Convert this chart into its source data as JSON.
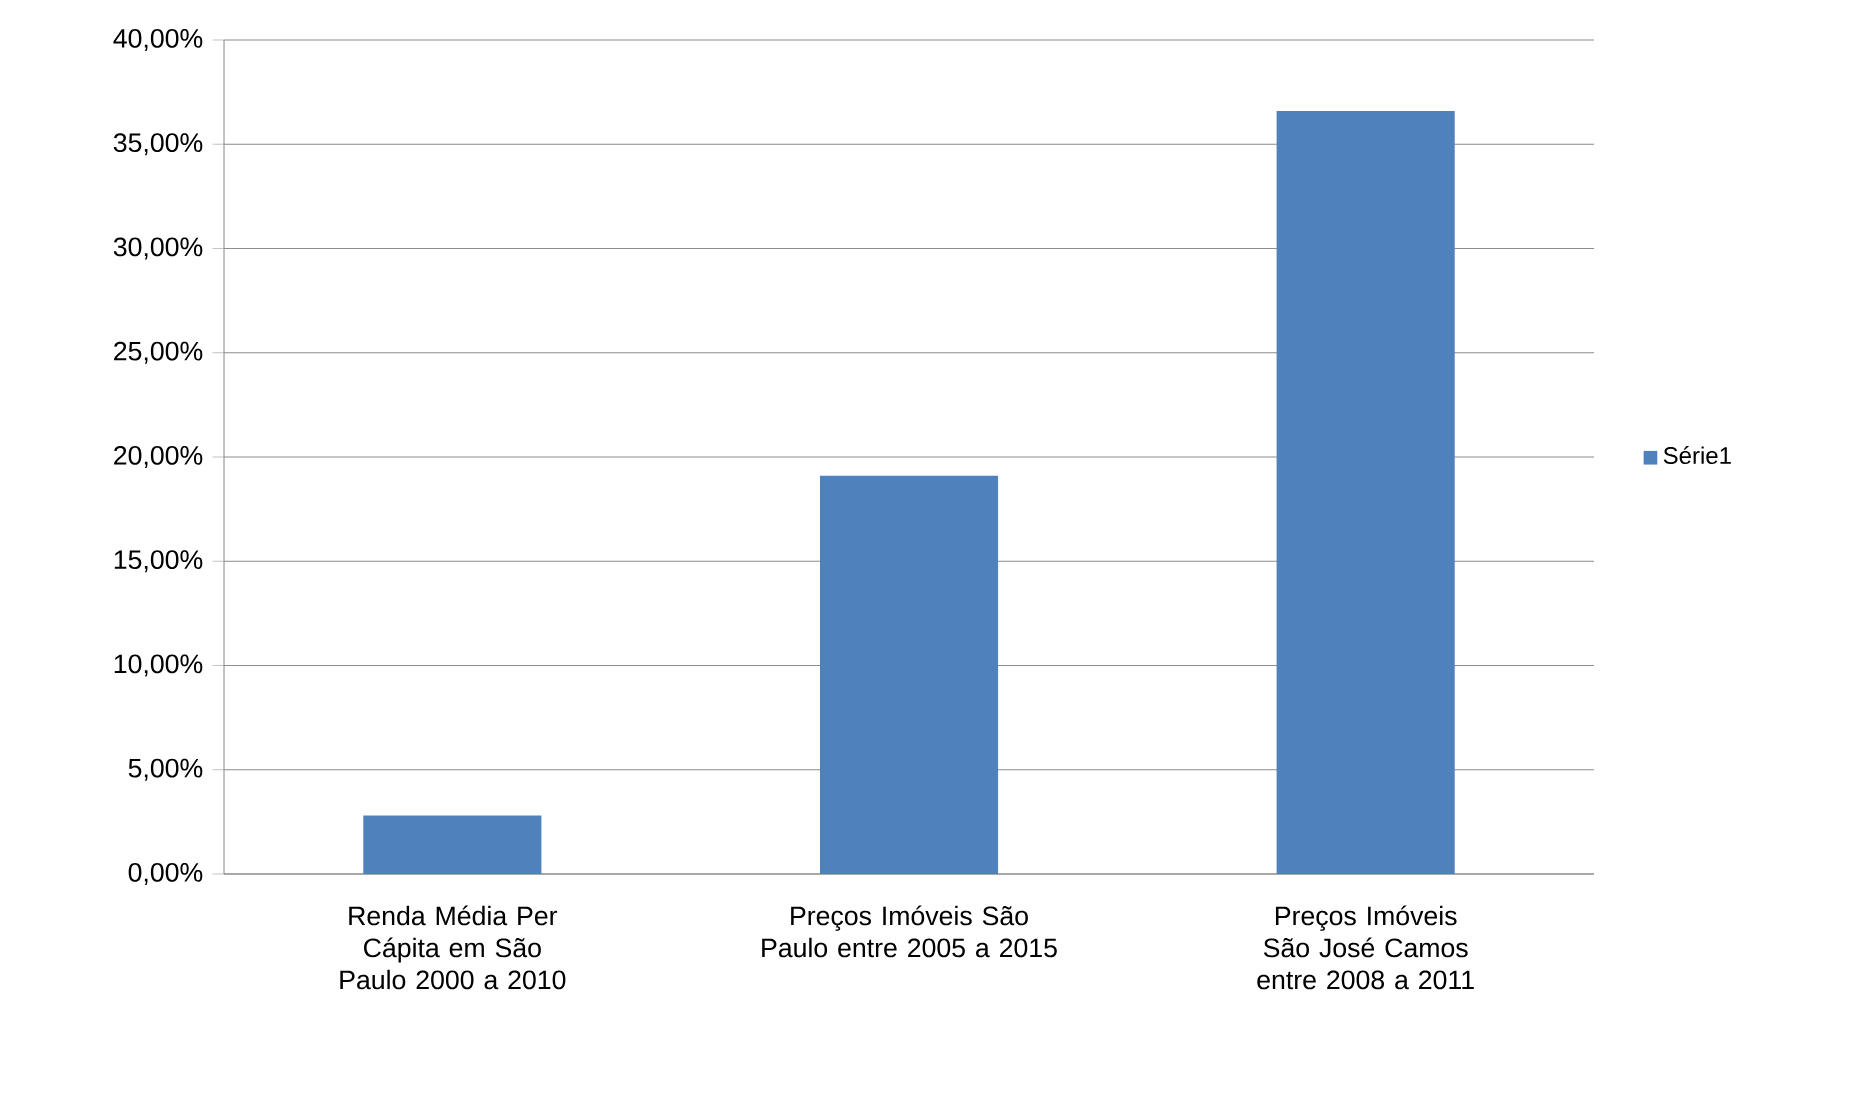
{
  "chart_data": {
    "type": "bar",
    "categories": [
      "Renda Média Per Cápita em São Paulo 2000 a 2010",
      "Preços Imóveis São Paulo entre 2005 a 2015",
      "Preços Imóveis São José Camos entre 2008 a 2011"
    ],
    "series": [
      {
        "name": "Série1",
        "color": "#4f81bd",
        "values": [
          2.8,
          19.1,
          36.6
        ]
      }
    ],
    "ylim": [
      0,
      40
    ],
    "yticks": [
      {
        "value": 0,
        "label": "0,00%"
      },
      {
        "value": 5,
        "label": "5,00%"
      },
      {
        "value": 10,
        "label": "10,00%"
      },
      {
        "value": 15,
        "label": "15,00%"
      },
      {
        "value": 20,
        "label": "20,00%"
      },
      {
        "value": 25,
        "label": "25,00%"
      },
      {
        "value": 30,
        "label": "30,00%"
      },
      {
        "value": 35,
        "label": "35,00%"
      },
      {
        "value": 40,
        "label": "40,00%"
      }
    ],
    "grid": "y",
    "legend": "right"
  }
}
